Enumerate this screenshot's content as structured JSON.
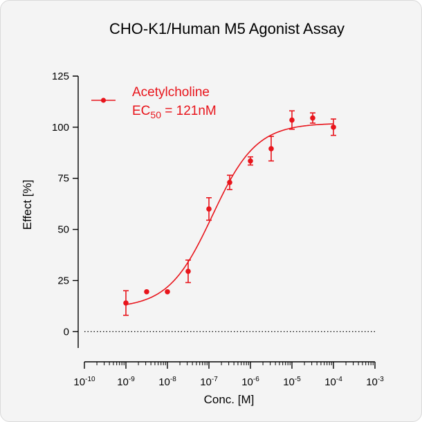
{
  "chart_data": {
    "type": "scatter",
    "title": "CHO-K1/Human M5 Agonist Assay",
    "xlabel": "Conc. [M]",
    "ylabel": "Effect  [%]",
    "x_scale": "log",
    "xlim": [
      1e-10,
      0.001
    ],
    "ylim": [
      -8,
      125
    ],
    "x_tick_labels": [
      {
        "base": "10",
        "exp": "-10"
      },
      {
        "base": "10",
        "exp": "-9"
      },
      {
        "base": "10",
        "exp": "-8"
      },
      {
        "base": "10",
        "exp": "-7"
      },
      {
        "base": "10",
        "exp": "-6"
      },
      {
        "base": "10",
        "exp": "-5"
      },
      {
        "base": "10",
        "exp": "-4"
      },
      {
        "base": "10",
        "exp": "-3"
      }
    ],
    "y_tick_labels": [
      "0",
      "25",
      "50",
      "75",
      "100",
      "125"
    ],
    "y_ticks": [
      0,
      25,
      50,
      75,
      100,
      125
    ],
    "zero_line": "dotted",
    "color": "#e8141b",
    "legend": {
      "position": "top-left",
      "name": "Acetylcholine",
      "ec_prefix": "EC",
      "ec_sub": "50",
      "ec_value": " = 121nM"
    },
    "series": [
      {
        "name": "Acetylcholine",
        "points": [
          {
            "x": 1e-09,
            "y": 14,
            "err": 6
          },
          {
            "x": 3.16e-09,
            "y": 19.5,
            "err": 0
          },
          {
            "x": 1e-08,
            "y": 19.5,
            "err": 0
          },
          {
            "x": 3.16e-08,
            "y": 29.5,
            "err": 5.5
          },
          {
            "x": 1e-07,
            "y": 60,
            "err": 5.5
          },
          {
            "x": 3.16e-07,
            "y": 73,
            "err": 3.5
          },
          {
            "x": 1e-06,
            "y": 83.5,
            "err": 2
          },
          {
            "x": 3.16e-06,
            "y": 89.5,
            "err": 6
          },
          {
            "x": 1e-05,
            "y": 103.5,
            "err": 4.5
          },
          {
            "x": 3.16e-05,
            "y": 104.5,
            "err": 2.5
          },
          {
            "x": 0.0001,
            "y": 100,
            "err": 4
          }
        ],
        "fit": {
          "bottom": 11.5,
          "top": 102,
          "ec50": 1.21e-07,
          "hill": 0.82
        }
      }
    ]
  }
}
